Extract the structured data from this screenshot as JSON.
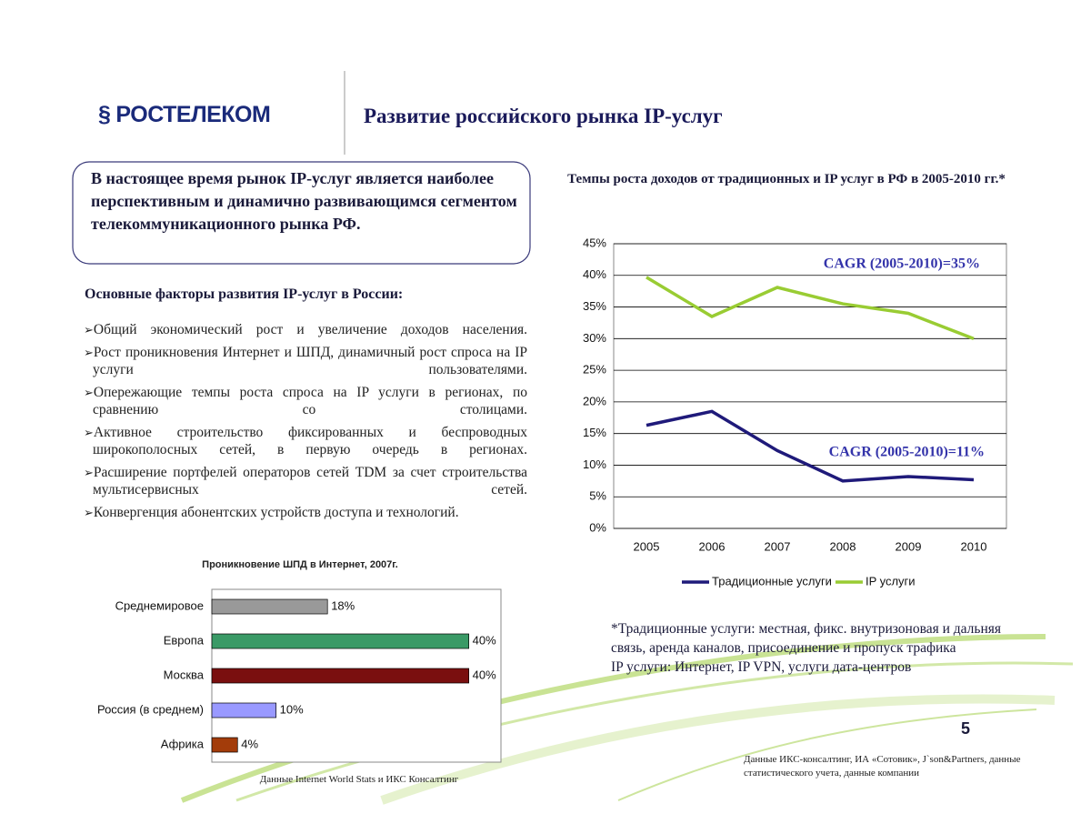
{
  "header": {
    "logo": "РОСТЕЛЕКОМ",
    "title": "Развитие российского рынка IP-услуг"
  },
  "summary": "В настоящее время рынок IP-услуг является наиболее перспективным и динамично развивающимся сегментом телекоммуникационного рынка РФ.",
  "factors": {
    "heading": "Основные факторы развития IP-услуг в России:",
    "items": [
      "Общий экономический рост и увеличение доходов населения.",
      "Рост проникновения Интернет и ШПД, динамичный рост спроса на IP услуги пользователями.",
      "Опережающие темпы роста спроса на IP услуги в регионах, по сравнению со столицами.",
      "Активное строительство фиксированных и беспроводных широкополосных сетей, в первую очередь в регионах.",
      "Расширение портфелей операторов сетей TDM за счет строительства мультисервисных сетей.",
      "Конвергенция абонентских устройств доступа и технологий."
    ]
  },
  "chart_data": [
    {
      "type": "line",
      "title": "Темпы роста доходов от традиционных и IP услуг в РФ в 2005-2010 гг.*",
      "categories": [
        "2005",
        "2006",
        "2007",
        "2008",
        "2009",
        "2010"
      ],
      "series": [
        {
          "name": "Традиционные услуги",
          "color": "#1f1a7a",
          "values": [
            16.3,
            18.5,
            12.3,
            7.5,
            8.2,
            7.7
          ]
        },
        {
          "name": "IP услуги",
          "color": "#99cc33",
          "values": [
            39.7,
            33.5,
            38.1,
            35.5,
            34.0,
            30.0
          ]
        }
      ],
      "ylim": [
        0,
        45
      ],
      "yticks": [
        {
          "value": 0,
          "label": "0%"
        },
        {
          "value": 5,
          "label": "5%"
        },
        {
          "value": 10,
          "label": "10%"
        },
        {
          "value": 15,
          "label": "15%"
        },
        {
          "value": 20,
          "label": "20%"
        },
        {
          "value": 25,
          "label": "25%"
        },
        {
          "value": 30,
          "label": "30%"
        },
        {
          "value": 35,
          "label": "35%"
        },
        {
          "value": 40,
          "label": "40%"
        },
        {
          "value": 45,
          "label": "45%"
        }
      ],
      "grid": true,
      "legend": "bottom",
      "annotations": [
        "CAGR (2005-2010)=35%",
        "CAGR (2005-2010)=11%"
      ]
    },
    {
      "type": "hbar",
      "title": "Проникновение ШПД в Интернет, 2007г.",
      "categories": [
        "Среднемировое",
        "Европа",
        "Москва",
        "Россия (в среднем)",
        "Африка"
      ],
      "values": [
        18,
        40,
        40,
        10,
        4
      ],
      "value_labels": [
        "18%",
        "40%",
        "40%",
        "10%",
        "4%"
      ],
      "colors": [
        "#999999",
        "#3a9a66",
        "#7a0f0f",
        "#9999ff",
        "#a33c0a"
      ],
      "xlim": [
        0,
        45
      ],
      "source": "Данные Internet World Stats и ИКС Консалтинг"
    }
  ],
  "footnote": [
    "*Традиционные услуги: местная, фикс. внутризоновая и дальняя связь, аренда каналов, присоединение и пропуск трафика",
    "IP услуги: Интернет, IP VPN, услуги дата-центров"
  ],
  "page_number": "5",
  "source": "Данные ИКС-консалтинг, ИА «Сотовик», J`son&Partners, данные статистического учета, данные компании"
}
